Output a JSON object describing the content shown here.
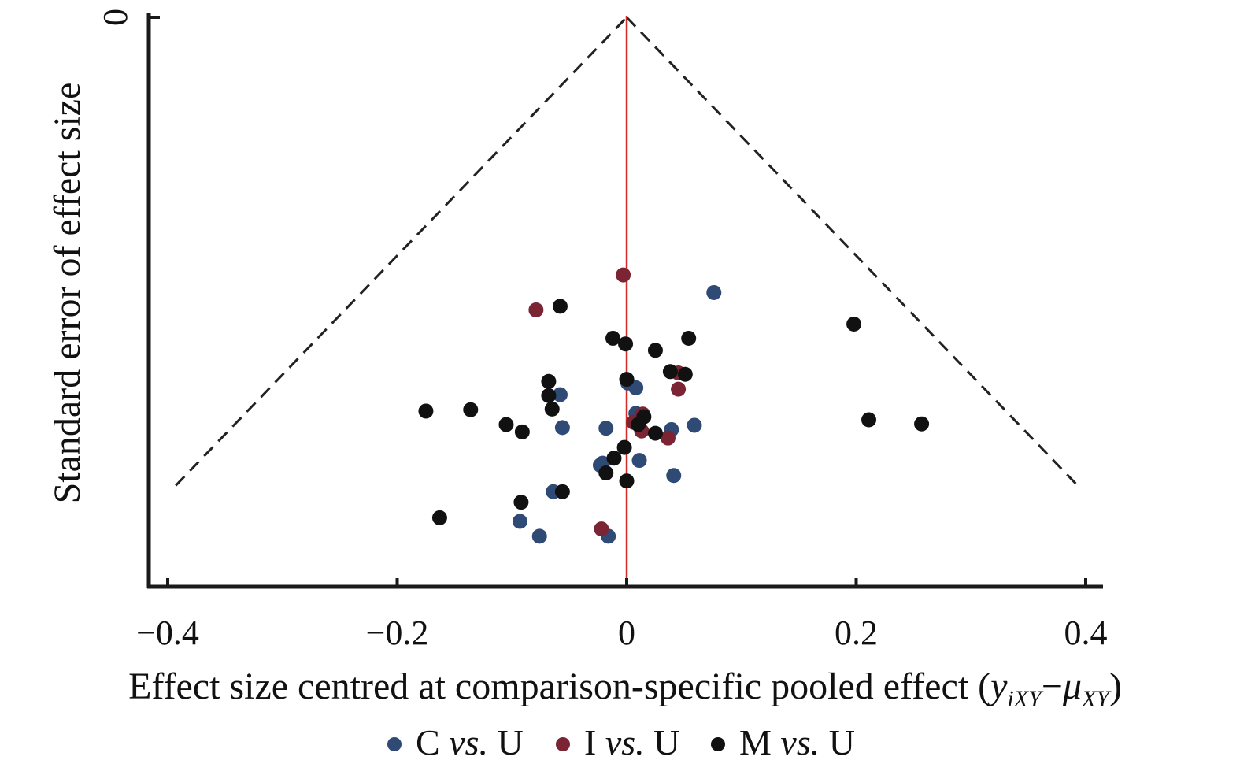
{
  "chart_data": {
    "type": "scatter",
    "title": "",
    "xlabel": {
      "prefix": "Effect size centred at comparison-specific pooled effect (",
      "y_main": "y",
      "y_sub": "iXY",
      "dash": "−",
      "mu_main": "μ",
      "mu_sub": "XY",
      "suffix": ")"
    },
    "ylabel": "Standard error of effect size",
    "xlim": [
      -0.42,
      0.42
    ],
    "ylim_reversed": true,
    "x_ticks": [
      {
        "value": -0.4,
        "label": "−0.4"
      },
      {
        "value": -0.2,
        "label": "−0.2"
      },
      {
        "value": 0,
        "label": "0"
      },
      {
        "value": 0.2,
        "label": "0.2"
      },
      {
        "value": 0.4,
        "label": "0.4"
      }
    ],
    "y_ticks": [
      {
        "value": 0,
        "label": "0"
      }
    ],
    "reference_line": {
      "x": 0,
      "color": "#d42a2a"
    },
    "funnel": {
      "apex": [
        0,
        0
      ],
      "left_base": [
        -0.393,
        0.205
      ],
      "right_base": [
        0.393,
        0.205
      ],
      "style": "dashed"
    },
    "legend": {
      "placement": "bottom",
      "entries": [
        {
          "marker_color": "#2e4a75",
          "label_a": "C",
          "label_vs": "vs.",
          "label_b": "U"
        },
        {
          "marker_color": "#7a2434",
          "label_a": "I",
          "label_vs": "vs.",
          "label_b": "U"
        },
        {
          "marker_color": "#111111",
          "label_a": "M",
          "label_vs": "vs.",
          "label_b": "U"
        }
      ]
    },
    "series": [
      {
        "name": "C vs. U",
        "color": "#2e4a75",
        "points": [
          {
            "x": 0.076,
            "y": 0.1205
          },
          {
            "x": -0.058,
            "y": 0.1652
          },
          {
            "x": 0.001,
            "y": 0.1601
          },
          {
            "x": 0.008,
            "y": 0.1622
          },
          {
            "x": 0.059,
            "y": 0.1786
          },
          {
            "x": -0.056,
            "y": 0.1796
          },
          {
            "x": -0.018,
            "y": 0.1799
          },
          {
            "x": 0.039,
            "y": 0.1805
          },
          {
            "x": 0.008,
            "y": 0.1734
          },
          {
            "x": 0.011,
            "y": 0.194
          },
          {
            "x": -0.023,
            "y": 0.1961
          },
          {
            "x": -0.021,
            "y": 0.1952
          },
          {
            "x": 0.041,
            "y": 0.2006
          },
          {
            "x": -0.064,
            "y": 0.2077
          },
          {
            "x": -0.093,
            "y": 0.2207
          },
          {
            "x": -0.076,
            "y": 0.2272
          },
          {
            "x": -0.016,
            "y": 0.2272
          }
        ]
      },
      {
        "name": "I vs. U",
        "color": "#7a2434",
        "points": [
          {
            "x": -0.003,
            "y": 0.1128
          },
          {
            "x": -0.079,
            "y": 0.1281
          },
          {
            "x": 0.045,
            "y": 0.1557
          },
          {
            "x": 0.045,
            "y": 0.1628
          },
          {
            "x": 0.014,
            "y": 0.1737
          },
          {
            "x": 0.006,
            "y": 0.1773
          },
          {
            "x": 0.013,
            "y": 0.1811
          },
          {
            "x": 0.036,
            "y": 0.1842
          },
          {
            "x": -0.022,
            "y": 0.224
          }
        ]
      },
      {
        "name": "M vs. U",
        "color": "#111111",
        "points": [
          {
            "x": -0.058,
            "y": 0.1265
          },
          {
            "x": 0.198,
            "y": 0.1343
          },
          {
            "x": -0.012,
            "y": 0.1405
          },
          {
            "x": 0.054,
            "y": 0.1405
          },
          {
            "x": -0.001,
            "y": 0.143
          },
          {
            "x": 0.025,
            "y": 0.1458
          },
          {
            "x": 0.038,
            "y": 0.1551
          },
          {
            "x": 0.051,
            "y": 0.1563
          },
          {
            "x": 0.0,
            "y": 0.1585
          },
          {
            "x": -0.068,
            "y": 0.1594
          },
          {
            "x": -0.068,
            "y": 0.1656
          },
          {
            "x": -0.065,
            "y": 0.1715
          },
          {
            "x": -0.175,
            "y": 0.1724
          },
          {
            "x": -0.136,
            "y": 0.1718
          },
          {
            "x": -0.105,
            "y": 0.1783
          },
          {
            "x": -0.091,
            "y": 0.1815
          },
          {
            "x": 0.211,
            "y": 0.1762
          },
          {
            "x": 0.257,
            "y": 0.178
          },
          {
            "x": 0.015,
            "y": 0.1749
          },
          {
            "x": 0.01,
            "y": 0.1783
          },
          {
            "x": 0.025,
            "y": 0.1821
          },
          {
            "x": -0.002,
            "y": 0.1883
          },
          {
            "x": -0.011,
            "y": 0.193
          },
          {
            "x": -0.018,
            "y": 0.1995
          },
          {
            "x": 0.0,
            "y": 0.203
          },
          {
            "x": -0.056,
            "y": 0.2077
          },
          {
            "x": -0.092,
            "y": 0.2123
          },
          {
            "x": -0.163,
            "y": 0.2191
          }
        ]
      }
    ]
  }
}
